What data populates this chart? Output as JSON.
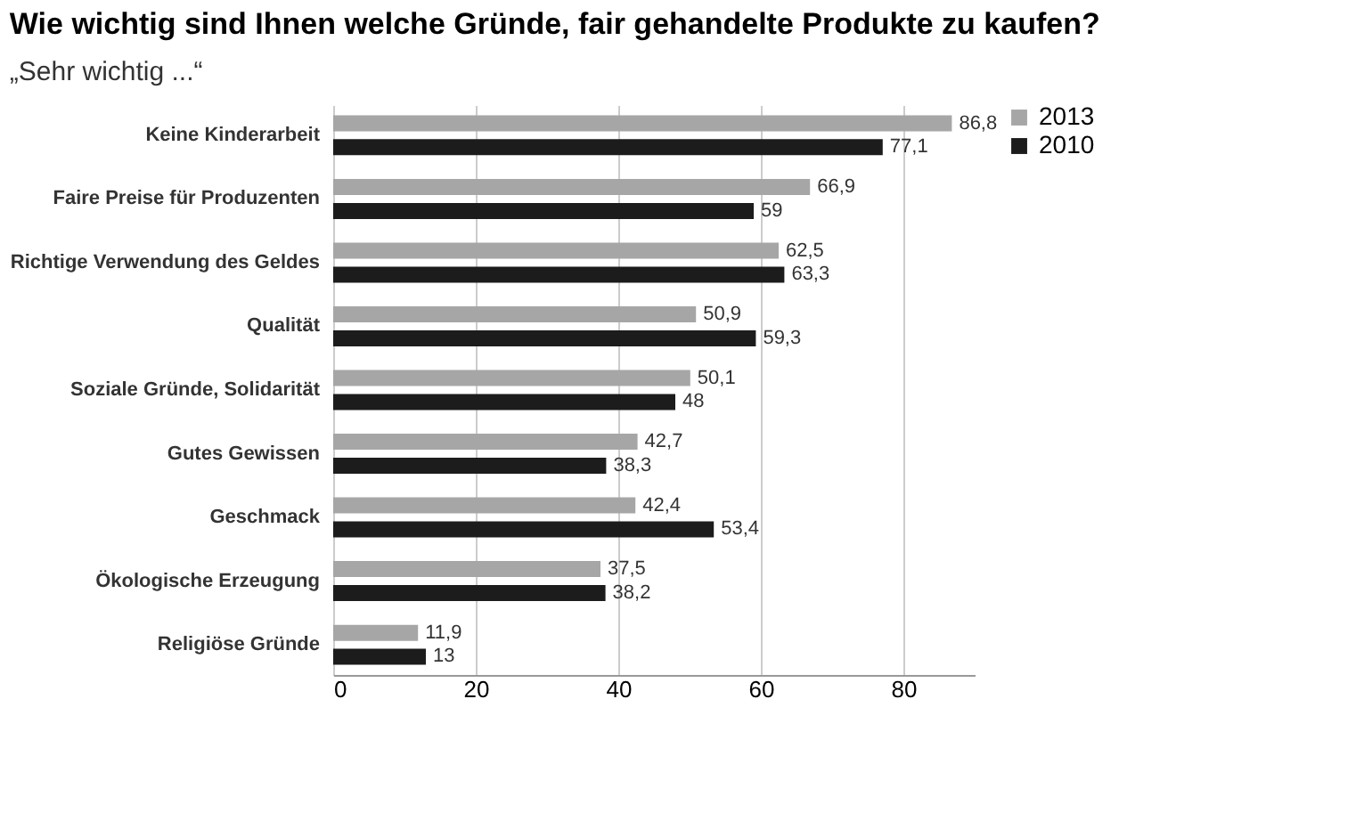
{
  "chart_data": {
    "type": "bar",
    "orientation": "horizontal",
    "title": "Wie wichtig sind Ihnen welche Gründe, fair gehandelte Produkte zu kaufen?",
    "subtitle": "„Sehr wichtig ...“",
    "categories": [
      "Keine Kinderarbeit",
      "Faire Preise für Produzenten",
      "Richtige Verwendung des Geldes",
      "Qualität",
      "Soziale Gründe, Solidarität",
      "Gutes Gewissen",
      "Geschmack",
      "Ökologische Erzeugung",
      "Religiöse Gründe"
    ],
    "series": [
      {
        "name": "2013",
        "color": "#a6a6a6",
        "values": [
          86.8,
          66.9,
          62.5,
          50.9,
          50.1,
          42.7,
          42.4,
          37.5,
          11.9
        ],
        "value_labels": [
          "86,8",
          "66,9",
          "62,5",
          "50,9",
          "50,1",
          "42,7",
          "42,4",
          "37,5",
          "11,9"
        ]
      },
      {
        "name": "2010",
        "color": "#1c1c1c",
        "values": [
          77.1,
          59,
          63.3,
          59.3,
          48,
          38.3,
          53.4,
          38.2,
          13
        ],
        "value_labels": [
          "77,1",
          "59",
          "63,3",
          "59,3",
          "48",
          "38,3",
          "53,4",
          "38,2",
          "13"
        ]
      }
    ],
    "xlim": [
      0,
      90
    ],
    "xticks": [
      0,
      20,
      40,
      60,
      80
    ],
    "grid": "x",
    "legend": "right"
  }
}
